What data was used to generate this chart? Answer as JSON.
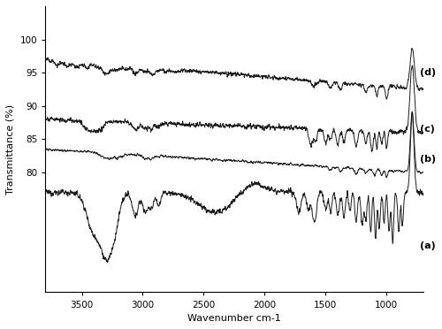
{
  "title": "",
  "xlabel": "Wavenumber cm-1",
  "ylabel": "Transmittance (%)",
  "xmin": 700,
  "xmax": 3800,
  "xticks": [
    3500,
    3000,
    2500,
    2000,
    1500,
    1000
  ],
  "line_color": "#1a1a1a",
  "background_color": "#ffffff",
  "label_fontsize": 8,
  "axis_fontsize": 8,
  "tick_fontsize": 7.5
}
